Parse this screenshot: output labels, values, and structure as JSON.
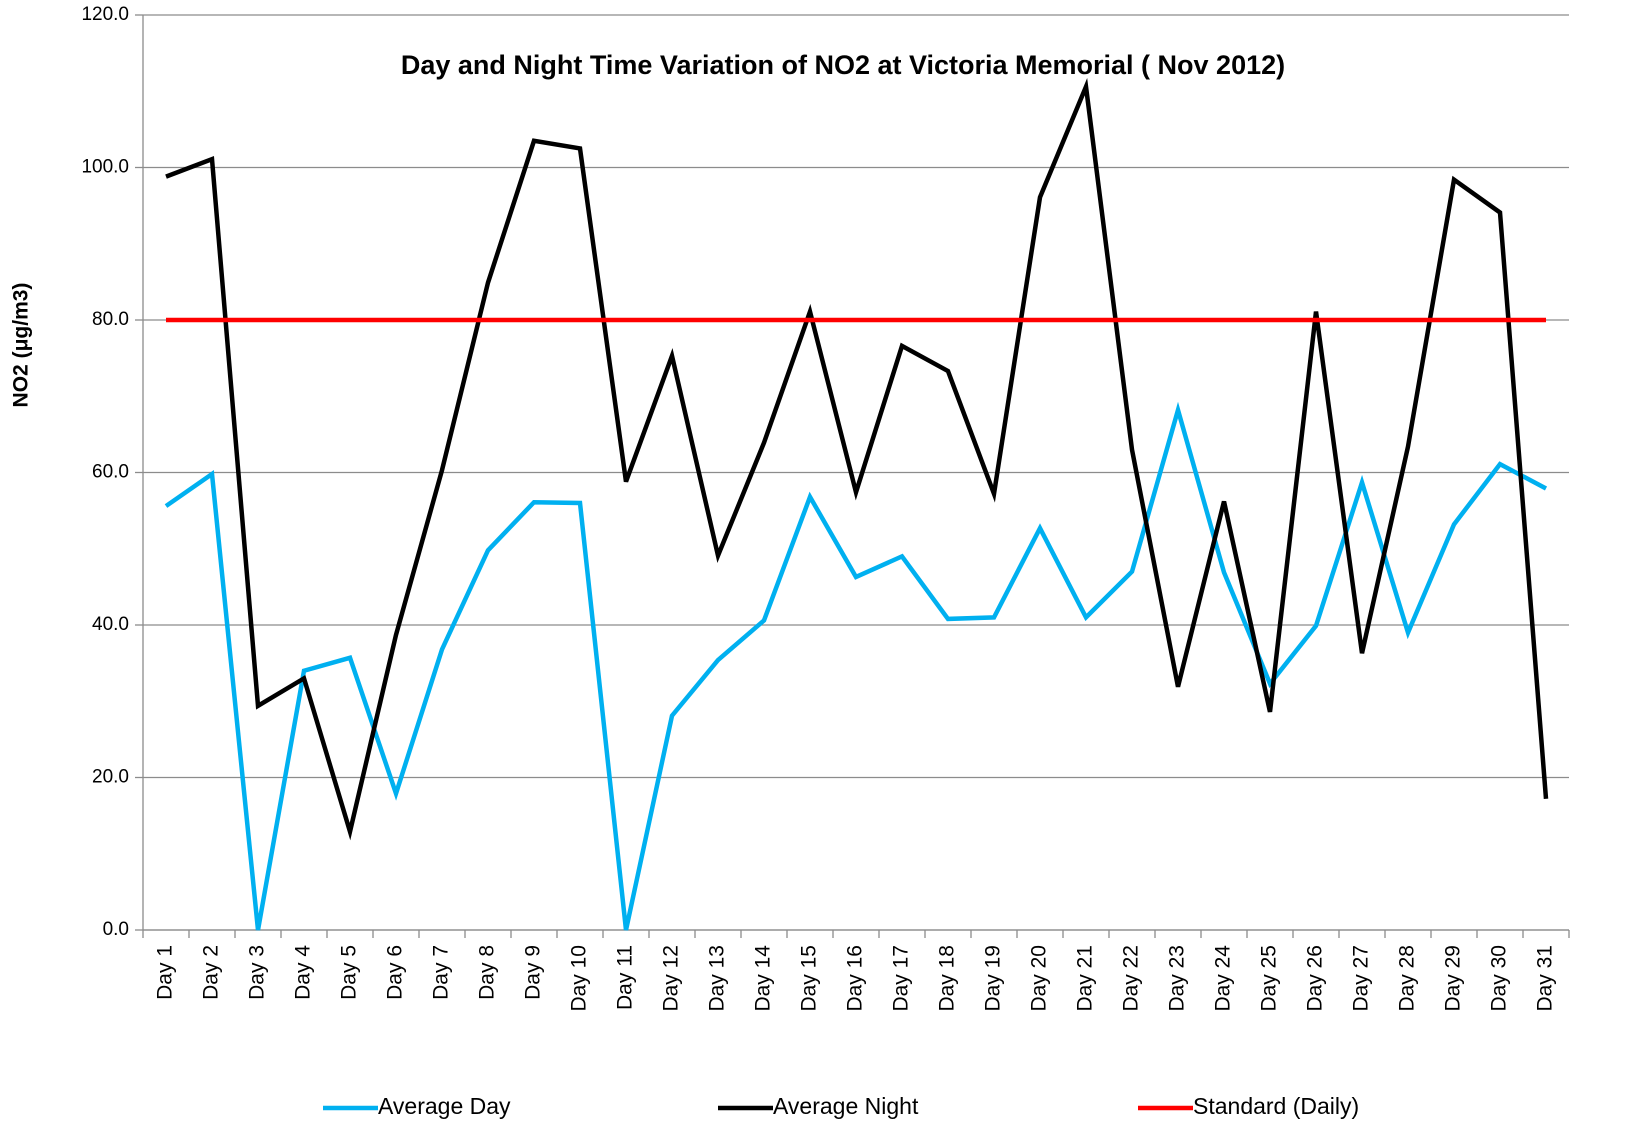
{
  "chart_data": {
    "type": "line",
    "title": "Day and Night Time Variation of NO2 at Victoria Memorial ( Nov 2012)",
    "y_label": "NO2 (μg/m3)",
    "categories": [
      "Day 1",
      "Day 2",
      "Day 3",
      "Day 4",
      "Day 5",
      "Day 6",
      "Day 7",
      "Day 8",
      "Day 9",
      "Day 10",
      "Day 11",
      "Day 12",
      "Day 13",
      "Day 14",
      "Day 15",
      "Day 16",
      "Day 17",
      "Day 18",
      "Day 19",
      "Day 20",
      "Day 21",
      "Day 22",
      "Day 23",
      "Day 24",
      "Day 25",
      "Day 26",
      "Day 27",
      "Day 28",
      "Day 29",
      "Day 30",
      "Day 31"
    ],
    "series": [
      {
        "name": "Average Day",
        "color": "#00b0f0",
        "values": [
          55.6,
          59.8,
          0,
          34,
          35.7,
          17.9,
          36.8,
          49.8,
          56.1,
          56,
          0,
          28.1,
          35.4,
          40.6,
          56.8,
          46.3,
          49,
          40.8,
          41,
          52.7,
          41,
          47,
          68.2,
          46.9,
          32.3,
          39.9,
          58.7,
          39,
          53.2,
          61.1,
          57.9
        ]
      },
      {
        "name": "Average Night",
        "color": "#000000",
        "values": [
          98.8,
          101.1,
          29.4,
          33,
          12.9,
          38.7,
          60.3,
          84.9,
          103.5,
          102.5,
          58.8,
          75.3,
          49.1,
          63.9,
          81.1,
          57.4,
          76.6,
          73.3,
          57.2,
          96.1,
          110.6,
          63,
          31.9,
          56.2,
          28.6,
          81.1,
          36.3,
          63.4,
          98.4,
          94.1,
          17.2
        ]
      },
      {
        "name": "Standard (Daily)",
        "color": "#ff0000",
        "values": [
          80,
          80,
          80,
          80,
          80,
          80,
          80,
          80,
          80,
          80,
          80,
          80,
          80,
          80,
          80,
          80,
          80,
          80,
          80,
          80,
          80,
          80,
          80,
          80,
          80,
          80,
          80,
          80,
          80,
          80,
          80
        ]
      }
    ],
    "ylim": [
      0,
      120
    ],
    "yticks": [
      {
        "value": 0,
        "label": "0.0"
      },
      {
        "value": 20,
        "label": "20.0"
      },
      {
        "value": 40,
        "label": "40.0"
      },
      {
        "value": 60,
        "label": "60.0"
      },
      {
        "value": 80,
        "label": "80.0"
      },
      {
        "value": 100,
        "label": "100.0"
      },
      {
        "value": 120,
        "label": "120.0"
      }
    ],
    "grid": true,
    "legend": "bottom"
  }
}
